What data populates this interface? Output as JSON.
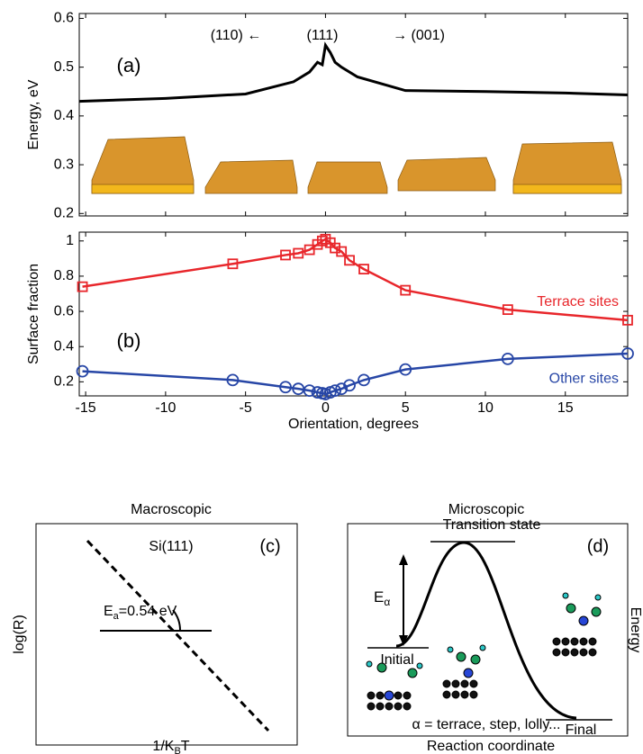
{
  "chart_data": [
    {
      "type": "line",
      "ylabel": "Energy, eV",
      "annotations": [
        "(110) ←",
        "(111)",
        "→ (001)",
        "(a)"
      ],
      "x": [
        -15.4,
        -10,
        -5,
        -2,
        -1,
        -0.5,
        -0.2,
        0,
        0.3,
        0.6,
        1,
        2,
        5,
        10,
        15,
        18.9
      ],
      "values": [
        0.43,
        0.436,
        0.445,
        0.47,
        0.49,
        0.51,
        0.505,
        0.545,
        0.53,
        0.51,
        0.5,
        0.48,
        0.452,
        0.45,
        0.447,
        0.443
      ],
      "color": "#000000",
      "xlim": [
        -15.4,
        18.9
      ],
      "ylim": [
        0.195,
        0.61
      ],
      "yticks": [
        0.2,
        0.3,
        0.4,
        0.5,
        0.6
      ]
    },
    {
      "type": "line",
      "xlabel": "Orientation, degrees",
      "ylabel": "Surface fraction",
      "annotations": [
        "(b)"
      ],
      "x": [
        -15.2,
        -5.8,
        -2.5,
        -1.7,
        -1,
        -0.5,
        -0.2,
        0,
        0.3,
        0.6,
        1,
        1.5,
        2.4,
        5,
        11.4,
        18.9
      ],
      "series": [
        {
          "name": "Terrace sites",
          "color": "#e8262b",
          "marker": "square",
          "values": [
            0.74,
            0.87,
            0.92,
            0.93,
            0.95,
            0.98,
            1.0,
            1.01,
            0.99,
            0.96,
            0.94,
            0.89,
            0.84,
            0.72,
            0.61,
            0.55
          ]
        },
        {
          "name": "Other sites",
          "color": "#2746a6",
          "marker": "circle",
          "values": [
            0.26,
            0.21,
            0.17,
            0.16,
            0.15,
            0.14,
            0.135,
            0.13,
            0.14,
            0.15,
            0.16,
            0.18,
            0.21,
            0.27,
            0.33,
            0.36
          ]
        }
      ],
      "xlim": [
        -15.4,
        18.9
      ],
      "ylim": [
        0.12,
        1.05
      ],
      "xticks": [
        -15,
        -10,
        -5,
        0,
        5,
        10,
        15
      ],
      "yticks": [
        0.2,
        0.4,
        0.6,
        0.8,
        1
      ]
    }
  ],
  "panel_c": {
    "title": "Macroscopic",
    "label": "(c)",
    "surface": "Si(111)",
    "ylabel": "log(R)",
    "xlabel": {
      "main": "1/K",
      "sub": "B",
      "rest": "T"
    },
    "energy": {
      "main": "E",
      "sub": "a",
      "rest": "=0.54 eV"
    }
  },
  "panel_d": {
    "title": "Microscopic",
    "label": "(d)",
    "transition": "Transition state",
    "initial": "Initial",
    "final": "Final",
    "barrier": {
      "main": "E",
      "sub": "α"
    },
    "note": "α = terrace, step, lolly...",
    "ylabel": "Energy",
    "xlabel": "Reaction coordinate"
  }
}
